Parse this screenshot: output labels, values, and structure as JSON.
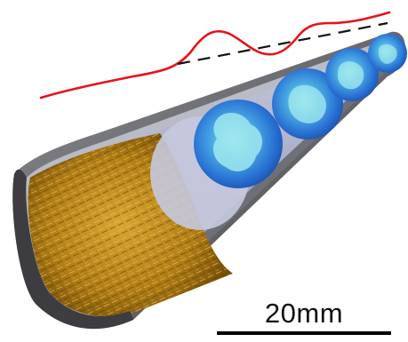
{
  "scale_bar": {
    "label": "20mm"
  },
  "colors": {
    "profile_line": "#e8121a",
    "axis_dash": "#111111",
    "tube_wall_outer": "#5e5e60",
    "tube_wall_inner": "#b9bbc6",
    "bore_surface": "#9fa3c2",
    "deposit": "#b8861c",
    "cross_section": "#2f7fd6",
    "cross_section_light": "#8fe0ec"
  },
  "icons": {
    "tube": "cutaway-pipe-icon",
    "slices": "cross-section-disc-icon"
  }
}
